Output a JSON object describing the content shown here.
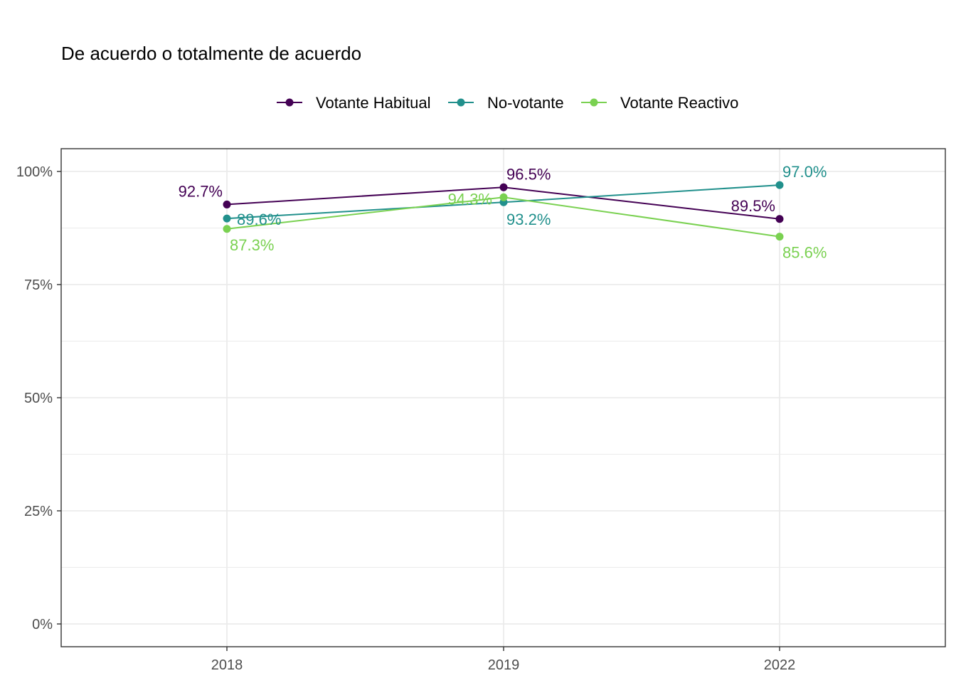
{
  "chart_data": {
    "type": "line",
    "title": "De acuerdo o totalmente de acuerdo",
    "xlabel": "",
    "ylabel": "",
    "categories": [
      "2018",
      "2019",
      "2022"
    ],
    "ylim": [
      0,
      100
    ],
    "y_ticks": [
      0,
      25,
      50,
      75,
      100
    ],
    "y_tick_labels": [
      "0%",
      "25%",
      "50%",
      "75%",
      "100%"
    ],
    "grid": true,
    "legend_position": "top",
    "series": [
      {
        "name": "Votante Habitual",
        "color": "#440154",
        "values": [
          92.7,
          96.5,
          89.5
        ],
        "labels": [
          "92.7%",
          "96.5%",
          "89.5%"
        ]
      },
      {
        "name": "No-votante",
        "color": "#21908C",
        "values": [
          89.6,
          93.2,
          97.0
        ],
        "labels": [
          "89.6%",
          "93.2%",
          "97.0%"
        ]
      },
      {
        "name": "Votante Reactivo",
        "color": "#7AD151",
        "values": [
          87.3,
          94.3,
          85.6
        ],
        "labels": [
          "87.3%",
          "94.3%",
          "85.6%"
        ]
      }
    ]
  }
}
